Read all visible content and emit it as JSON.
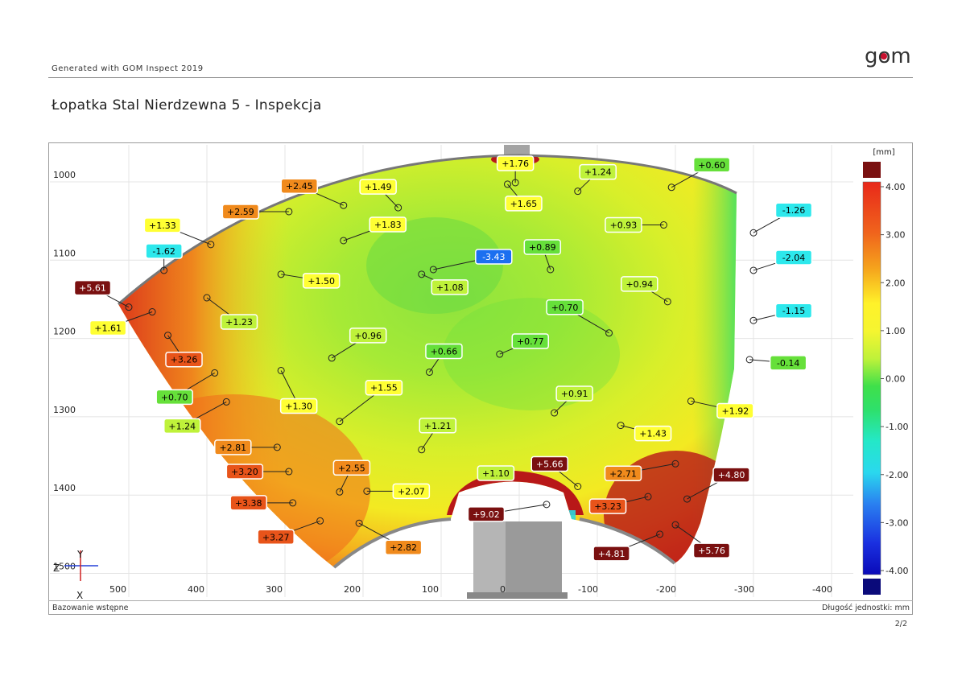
{
  "header": {
    "generated_text": "Generated with GOM Inspect 2019",
    "logo_text": "gom",
    "title": "Łopatka Stal Nierdzewna 5 - Inspekcja"
  },
  "footer": {
    "left": "Bazowanie wstępne",
    "right": "Długość jednostki: mm",
    "page": "2/2"
  },
  "axes_gizmo": {
    "z": "Z",
    "y": "Y",
    "x": "X"
  },
  "colors": {
    "label_darkred": "#7a1010",
    "label_orange": "#f08a1c",
    "label_orange_red": "#e8541a",
    "label_yellow": "#ffff33",
    "label_lime": "#bff23a",
    "label_green": "#66e03a",
    "label_cyan": "#2de8ec",
    "label_blue": "#1c6ff0"
  },
  "chart_data": {
    "type": "heatmap",
    "xaxis_ticks": [
      "500",
      "400",
      "300",
      "200",
      "100",
      "0",
      "-100",
      "-200",
      "-300",
      "-400"
    ],
    "yaxis_ticks": [
      "1000",
      "1100",
      "1200",
      "1300",
      "1400",
      "1500"
    ],
    "colorbar": {
      "unit": "[mm]",
      "min": -4.0,
      "max": 4.0,
      "ticks": [
        "4.00",
        "3.00",
        "2.00",
        "1.00",
        "0.00",
        "-1.00",
        "-2.00",
        "-3.00",
        "-4.00"
      ]
    },
    "points": [
      {
        "label": "+1.76",
        "value": 1.76,
        "x": 5,
        "y": 1001
      },
      {
        "label": "+1.24",
        "value": 1.24,
        "x": -75,
        "y": 1012
      },
      {
        "label": "+0.60",
        "value": 0.6,
        "x": -195,
        "y": 1007
      },
      {
        "label": "+2.45",
        "value": 2.45,
        "x": 225,
        "y": 1030
      },
      {
        "label": "+1.49",
        "value": 1.49,
        "x": 155,
        "y": 1033
      },
      {
        "label": "+1.65",
        "value": 1.65,
        "x": 15,
        "y": 1003
      },
      {
        "label": "-1.26",
        "value": -1.26,
        "x": -300,
        "y": 1065
      },
      {
        "label": "+1.33",
        "value": 1.33,
        "x": 395,
        "y": 1080
      },
      {
        "label": "+2.59",
        "value": 2.59,
        "x": 295,
        "y": 1038
      },
      {
        "label": "+0.93",
        "value": 0.93,
        "x": -185,
        "y": 1055
      },
      {
        "label": "-2.04",
        "value": -2.04,
        "x": -300,
        "y": 1113
      },
      {
        "label": "-1.62",
        "value": -1.62,
        "x": 455,
        "y": 1113
      },
      {
        "label": "+1.83",
        "value": 1.83,
        "x": 225,
        "y": 1075
      },
      {
        "label": "+0.89",
        "value": 0.89,
        "x": -40,
        "y": 1112
      },
      {
        "label": "+5.61",
        "value": 5.61,
        "x": 500,
        "y": 1160
      },
      {
        "label": "-3.43",
        "value": -3.43,
        "x": 110,
        "y": 1112
      },
      {
        "label": "+0.94",
        "value": 0.94,
        "x": -190,
        "y": 1153
      },
      {
        "label": "+1.50",
        "value": 1.5,
        "x": 305,
        "y": 1118
      },
      {
        "label": "+1.08",
        "value": 1.08,
        "x": 125,
        "y": 1118
      },
      {
        "label": "+0.70",
        "value": 0.7,
        "x": -115,
        "y": 1193
      },
      {
        "label": "+1.23",
        "value": 1.23,
        "x": 400,
        "y": 1148
      },
      {
        "label": "-1.15",
        "value": -1.15,
        "x": -300,
        "y": 1177
      },
      {
        "label": "+1.61",
        "value": 1.61,
        "x": 470,
        "y": 1166
      },
      {
        "label": "+0.96",
        "value": 0.96,
        "x": 240,
        "y": 1225
      },
      {
        "label": "+0.66",
        "value": 0.66,
        "x": 115,
        "y": 1243
      },
      {
        "label": "+0.77",
        "value": 0.77,
        "x": 25,
        "y": 1220
      },
      {
        "label": "+3.26",
        "value": 3.26,
        "x": 450,
        "y": 1196
      },
      {
        "label": "-0.14",
        "value": -0.14,
        "x": -295,
        "y": 1227
      },
      {
        "label": "+0.70",
        "value": 0.7,
        "x": 390,
        "y": 1244
      },
      {
        "label": "+1.30",
        "value": 1.3,
        "x": 305,
        "y": 1241
      },
      {
        "label": "+1.55",
        "value": 1.55,
        "x": 230,
        "y": 1306
      },
      {
        "label": "+0.91",
        "value": 0.91,
        "x": -45,
        "y": 1295
      },
      {
        "label": "+1.92",
        "value": 1.92,
        "x": -220,
        "y": 1280
      },
      {
        "label": "+1.24",
        "value": 1.24,
        "x": 375,
        "y": 1281
      },
      {
        "label": "+1.21",
        "value": 1.21,
        "x": 125,
        "y": 1342
      },
      {
        "label": "+1.43",
        "value": 1.43,
        "x": -130,
        "y": 1311
      },
      {
        "label": "+2.81",
        "value": 2.81,
        "x": 310,
        "y": 1339
      },
      {
        "label": "+5.66",
        "value": 5.66,
        "x": -75,
        "y": 1389
      },
      {
        "label": "+2.71",
        "value": 2.71,
        "x": -200,
        "y": 1360
      },
      {
        "label": "+4.80",
        "value": 4.8,
        "x": -215,
        "y": 1405
      },
      {
        "label": "+2.55",
        "value": 2.55,
        "x": 230,
        "y": 1396
      },
      {
        "label": "+1.10",
        "value": 1.1,
        "x": 30,
        "y": 1372
      },
      {
        "label": "+2.07",
        "value": 2.07,
        "x": 195,
        "y": 1395
      },
      {
        "label": "+3.20",
        "value": 3.2,
        "x": 295,
        "y": 1370
      },
      {
        "label": "+3.23",
        "value": 3.23,
        "x": -165,
        "y": 1402
      },
      {
        "label": "+9.02",
        "value": 9.02,
        "x": -35,
        "y": 1412
      },
      {
        "label": "+3.38",
        "value": 3.38,
        "x": 290,
        "y": 1410
      },
      {
        "label": "+4.81",
        "value": 4.81,
        "x": -180,
        "y": 1450
      },
      {
        "label": "+5.76",
        "value": 5.76,
        "x": -200,
        "y": 1438
      },
      {
        "label": "+3.27",
        "value": 3.27,
        "x": 255,
        "y": 1433
      },
      {
        "label": "+2.82",
        "value": 2.82,
        "x": 205,
        "y": 1436
      }
    ]
  }
}
